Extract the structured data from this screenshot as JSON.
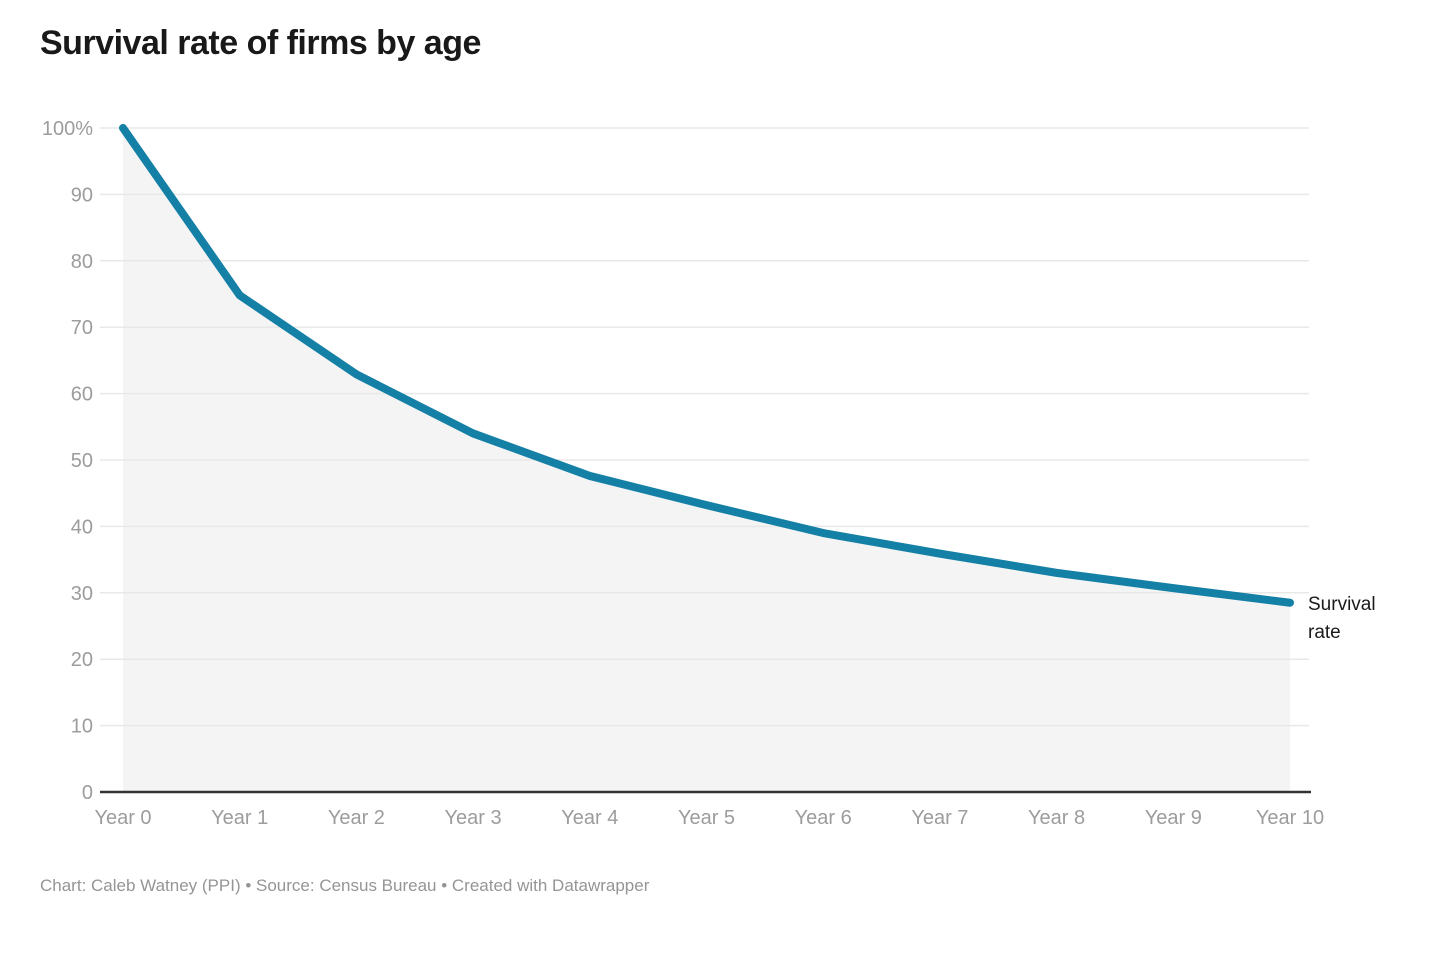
{
  "title": "Survival rate of firms by age",
  "footer": "Chart: Caleb Watney (PPI) • Source: Census Bureau • Created with Datawrapper",
  "end_label": "Survival rate",
  "colors": {
    "line": "#1580a5",
    "area_fill": "#f4f4f4",
    "grid": "#e8e8e8",
    "baseline": "#333333",
    "tick_text": "#9c9c9c",
    "title_text": "#191919",
    "footer_text": "#959595",
    "end_label_text": "#1a1a1a"
  },
  "chart_data": {
    "type": "line",
    "title": "Survival rate of firms by age",
    "categories": [
      "Year 0",
      "Year 1",
      "Year 2",
      "Year 3",
      "Year 4",
      "Year 5",
      "Year 6",
      "Year 7",
      "Year 8",
      "Year 9",
      "Year 10"
    ],
    "series": [
      {
        "name": "Survival rate",
        "values": [
          100,
          74.8,
          62.9,
          54.0,
          47.6,
          43.2,
          39.0,
          35.9,
          33.0,
          30.7,
          28.5
        ]
      }
    ],
    "xlabel": "",
    "ylabel": "",
    "ylim": [
      0,
      100
    ],
    "yticks": [
      0,
      10,
      20,
      30,
      40,
      50,
      60,
      70,
      80,
      90,
      100
    ],
    "ytick_labels": [
      "0",
      "10",
      "20",
      "30",
      "40",
      "50",
      "60",
      "70",
      "80",
      "90",
      "100%"
    ],
    "grid": "horizontal",
    "area_fill": true,
    "line_width": 8,
    "legend_position": "line-end-label"
  }
}
